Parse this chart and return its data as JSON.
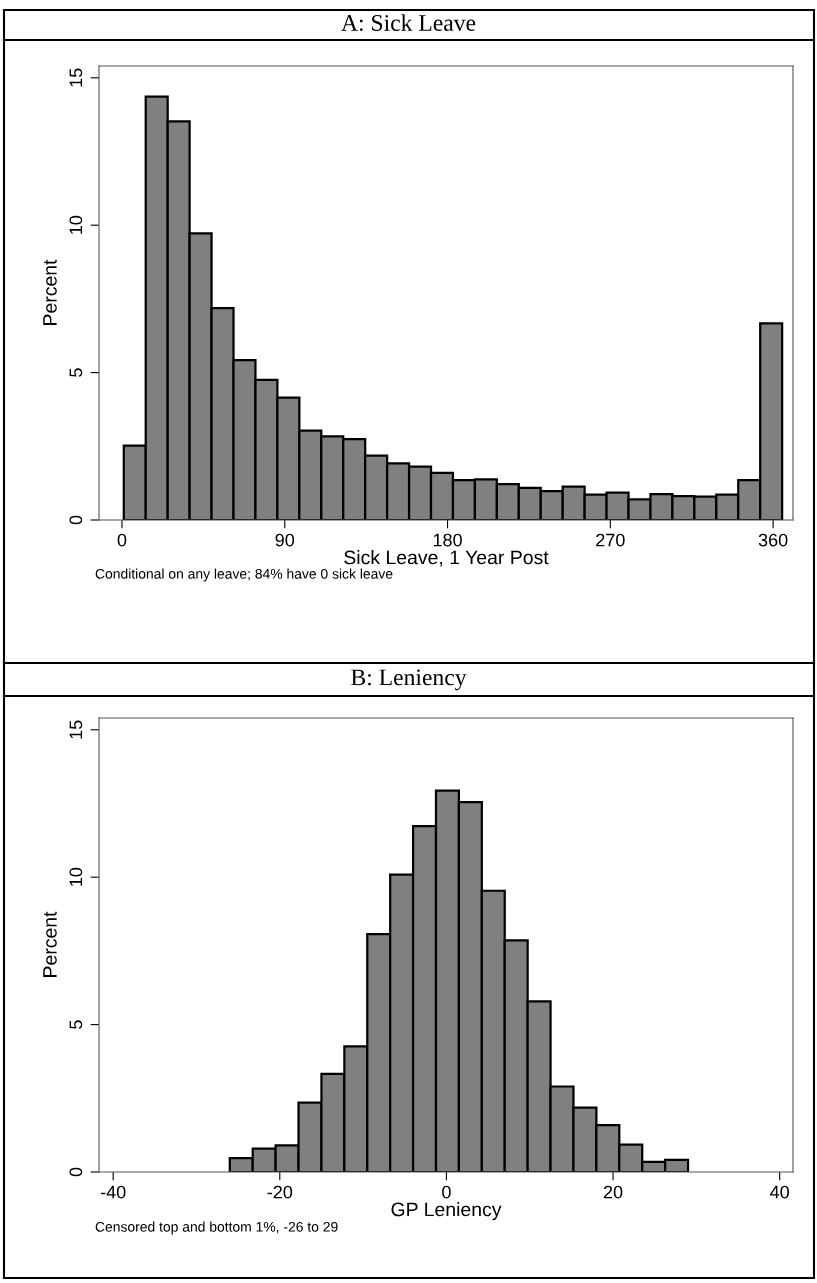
{
  "chart_data": [
    {
      "type": "histogram",
      "title": "A: Sick Leave",
      "xlabel": "Sick Leave, 1 Year Post",
      "ylabel": "Percent",
      "annotations": [
        "Conditional on any leave; 84% have 0 sick leave"
      ],
      "color": "#808080",
      "bins": [
        1,
        13.13,
        25.27,
        37.4,
        49.53,
        61.67,
        73.8,
        85.93,
        98.07,
        110.2,
        122.33,
        134.47,
        146.6,
        158.73,
        170.87,
        183,
        195.13,
        207.27,
        219.4,
        231.53,
        243.67,
        255.8,
        267.93,
        280.07,
        292.2,
        304.33,
        316.47,
        328.6,
        340.73,
        352.87,
        365
      ],
      "values": [
        2.52,
        14.36,
        13.52,
        9.72,
        7.19,
        5.42,
        4.75,
        4.15,
        3.03,
        2.84,
        2.74,
        2.18,
        1.92,
        1.81,
        1.6,
        1.35,
        1.38,
        1.22,
        1.09,
        0.98,
        1.13,
        0.86,
        0.93,
        0.7,
        0.88,
        0.81,
        0.79,
        0.86,
        1.35,
        6.67
      ],
      "xlim": [
        -12.7,
        371
      ],
      "xticks": [
        0,
        90,
        180,
        270,
        360
      ],
      "ylim": [
        0,
        15.4
      ],
      "yticks": [
        0,
        5,
        10,
        15
      ],
      "grid": false
    },
    {
      "type": "histogram",
      "title": "B: Leniency",
      "xlabel": "GP Leniency",
      "ylabel": "Percent",
      "annotations": [
        "Censored top and bottom 1%, -26 to 29"
      ],
      "color": "#808080",
      "bins": [
        -26,
        -23.25,
        -20.5,
        -17.75,
        -15,
        -12.25,
        -9.5,
        -6.75,
        -4,
        -1.25,
        1.5,
        4.25,
        7,
        9.75,
        12.5,
        15.25,
        18,
        20.75,
        23.5,
        26.25,
        29
      ],
      "values": [
        0.47,
        0.79,
        0.9,
        2.35,
        3.33,
        4.26,
        8.07,
        10.09,
        11.73,
        12.94,
        12.55,
        9.54,
        7.86,
        5.79,
        2.9,
        2.18,
        1.59,
        0.93,
        0.34,
        0.41
      ],
      "xlim": [
        -41.7,
        41.6
      ],
      "xticks": [
        -40,
        -20,
        0,
        20,
        40
      ],
      "ylim": [
        0,
        15.4
      ],
      "yticks": [
        0,
        5,
        10,
        15
      ],
      "grid": false
    }
  ]
}
